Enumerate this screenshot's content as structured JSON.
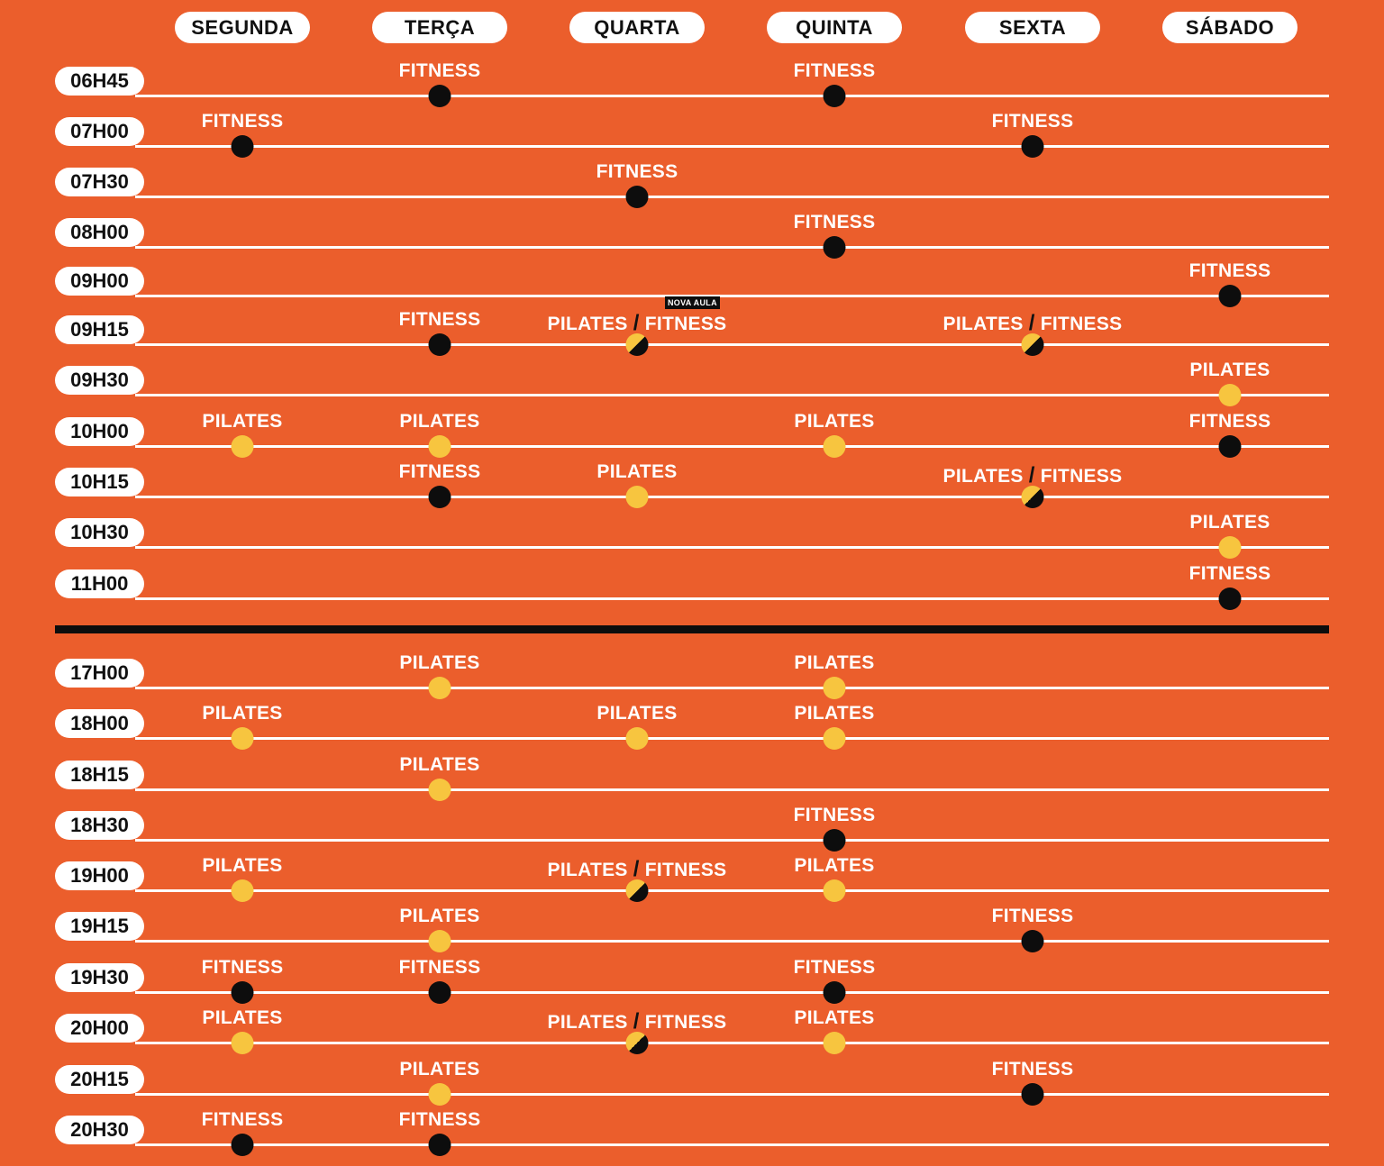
{
  "days": [
    "SEGUNDA",
    "TERÇA",
    "QUARTA",
    "QUINTA",
    "SEXTA",
    "SÁBADO"
  ],
  "colors": {
    "background": "#EB5E2C",
    "pilates": "#F7C53F",
    "fitness": "#0d0d0d",
    "line": "#ffffff"
  },
  "legend": {
    "pilates": "PILATES",
    "fitness": "FITNESS",
    "separator": "/"
  },
  "new_class_badge": "NOVA AULA",
  "morning": [
    {
      "time": "06H45",
      "classes": [
        {
          "day": 1,
          "type": "F"
        },
        {
          "day": 3,
          "type": "F"
        }
      ]
    },
    {
      "time": "07H00",
      "classes": [
        {
          "day": 0,
          "type": "F"
        },
        {
          "day": 4,
          "type": "F"
        }
      ]
    },
    {
      "time": "07H30",
      "classes": [
        {
          "day": 2,
          "type": "F"
        }
      ]
    },
    {
      "time": "08H00",
      "classes": [
        {
          "day": 3,
          "type": "F"
        }
      ]
    },
    {
      "time": "09H00",
      "classes": [
        {
          "day": 5,
          "type": "F"
        }
      ]
    },
    {
      "time": "09H15",
      "classes": [
        {
          "day": 1,
          "type": "F"
        },
        {
          "day": 2,
          "type": "PF",
          "new": true
        },
        {
          "day": 4,
          "type": "PF"
        }
      ]
    },
    {
      "time": "09H30",
      "classes": [
        {
          "day": 5,
          "type": "P"
        }
      ]
    },
    {
      "time": "10H00",
      "classes": [
        {
          "day": 0,
          "type": "P"
        },
        {
          "day": 1,
          "type": "P"
        },
        {
          "day": 3,
          "type": "P"
        },
        {
          "day": 5,
          "type": "F"
        }
      ]
    },
    {
      "time": "10H15",
      "classes": [
        {
          "day": 1,
          "type": "F"
        },
        {
          "day": 2,
          "type": "P"
        },
        {
          "day": 4,
          "type": "PF"
        }
      ]
    },
    {
      "time": "10H30",
      "classes": [
        {
          "day": 5,
          "type": "P"
        }
      ]
    },
    {
      "time": "11H00",
      "classes": [
        {
          "day": 5,
          "type": "F"
        }
      ]
    }
  ],
  "evening": [
    {
      "time": "17H00",
      "classes": [
        {
          "day": 1,
          "type": "P"
        },
        {
          "day": 3,
          "type": "P"
        }
      ]
    },
    {
      "time": "18H00",
      "classes": [
        {
          "day": 0,
          "type": "P"
        },
        {
          "day": 2,
          "type": "P"
        },
        {
          "day": 3,
          "type": "P"
        }
      ]
    },
    {
      "time": "18H15",
      "classes": [
        {
          "day": 1,
          "type": "P"
        }
      ]
    },
    {
      "time": "18H30",
      "classes": [
        {
          "day": 3,
          "type": "F"
        }
      ]
    },
    {
      "time": "19H00",
      "classes": [
        {
          "day": 0,
          "type": "P"
        },
        {
          "day": 2,
          "type": "PF"
        },
        {
          "day": 3,
          "type": "P"
        }
      ]
    },
    {
      "time": "19H15",
      "classes": [
        {
          "day": 1,
          "type": "P"
        },
        {
          "day": 4,
          "type": "F"
        }
      ]
    },
    {
      "time": "19H30",
      "classes": [
        {
          "day": 0,
          "type": "F"
        },
        {
          "day": 1,
          "type": "F"
        },
        {
          "day": 3,
          "type": "F"
        }
      ]
    },
    {
      "time": "20H00",
      "classes": [
        {
          "day": 0,
          "type": "P"
        },
        {
          "day": 2,
          "type": "PF"
        },
        {
          "day": 3,
          "type": "P"
        }
      ]
    },
    {
      "time": "20H15",
      "classes": [
        {
          "day": 1,
          "type": "P"
        },
        {
          "day": 4,
          "type": "F"
        }
      ]
    },
    {
      "time": "20H30",
      "classes": [
        {
          "day": 0,
          "type": "F"
        },
        {
          "day": 1,
          "type": "F"
        }
      ]
    }
  ]
}
